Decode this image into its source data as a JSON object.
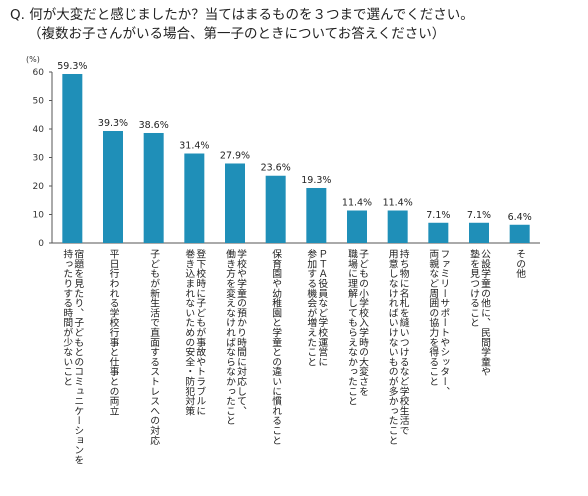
{
  "question": {
    "line1": "Q. 何が大変だと感じましたか？当てはまるものを３つまで選んでください。",
    "line2": "（複数お子さんがいる場合、第一子のときについてお答えください）"
  },
  "chart_data": {
    "type": "bar",
    "title": "",
    "xlabel": "",
    "ylabel": "(%)",
    "ylim": [
      0,
      60
    ],
    "yticks": [
      0,
      10,
      20,
      30,
      40,
      50,
      60
    ],
    "grid": false,
    "legend": "none",
    "bar_color": "#1f8fb8",
    "categories": [
      [
        "宿題を見たり、子どもとのコミュニケーションを",
        "持ったりする時間が少ないこと"
      ],
      [
        "平日行われる学校行事と仕事との両立"
      ],
      [
        "子どもが新生活で直面するストレスへの対応"
      ],
      [
        "登下校時に子どもが事故やトラブルに",
        "巻き込まれないための安全・防犯対策"
      ],
      [
        "学校や学童の預かり時間に対応して、",
        "働き方を変えなければならなかったこと"
      ],
      [
        "保育園や幼稚園と学童との違いに慣れること"
      ],
      [
        "ＰＴＡ役員など学校運営に",
        "参加する機会が増えたこと"
      ],
      [
        "子どもの小学校入学時の大変さを",
        "職場に理解してもらえなかったこと"
      ],
      [
        "持ち物に名札を縫いつけるなど学校生活で",
        "用意しなければいけないものが多かったこと"
      ],
      [
        "ファミリーサポートやシッター、",
        "両親など周囲の協力を得ること"
      ],
      [
        "公設学童の他に、民間学童や",
        "塾を見つけること"
      ],
      [
        "その他"
      ]
    ],
    "values": [
      59.3,
      39.3,
      38.6,
      31.4,
      27.9,
      23.6,
      19.3,
      11.4,
      11.4,
      7.1,
      7.1,
      6.4
    ],
    "value_labels": [
      "59.3%",
      "39.3%",
      "38.6%",
      "31.4%",
      "27.9%",
      "23.6%",
      "19.3%",
      "11.4%",
      "11.4%",
      "7.1%",
      "7.1%",
      "6.4%"
    ]
  }
}
